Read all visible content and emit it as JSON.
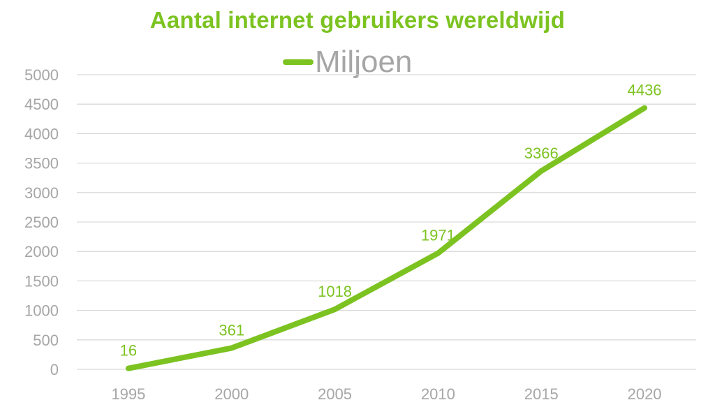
{
  "chart_data": {
    "type": "line",
    "title": "Aantal internet gebruikers wereldwijd",
    "x": [
      "1995",
      "2000",
      "2005",
      "2010",
      "2015",
      "2020"
    ],
    "series": [
      {
        "name": "Miljoen",
        "values": [
          16,
          361,
          1018,
          1971,
          3366,
          4436
        ],
        "color": "#7cc321"
      }
    ],
    "data_labels": [
      "16",
      "361",
      "1018",
      "1971",
      "3366",
      "4436"
    ],
    "y_ticks": [
      "0",
      "500",
      "1000",
      "1500",
      "2000",
      "2500",
      "3000",
      "3500",
      "4000",
      "4500",
      "5000"
    ],
    "ylim": [
      0,
      5000
    ],
    "grid": true,
    "legend": "top-center",
    "colors": {
      "accent": "#7cc321",
      "tick": "#a6a6a6",
      "grid": "#d9d9d9"
    }
  }
}
